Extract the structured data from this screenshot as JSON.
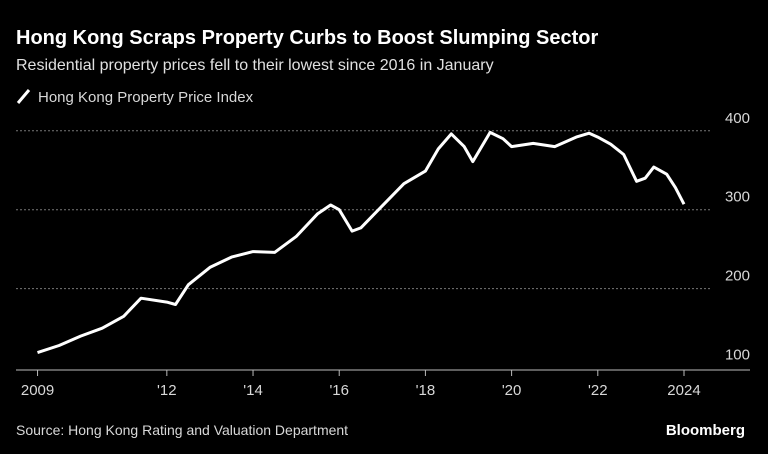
{
  "chart_data": {
    "type": "line",
    "title": "Hong Kong Scraps Property Curbs to Boost Slumping Sector",
    "subtitle": "Residential property prices fell to their lowest since 2016 in January",
    "source": "Source: Hong Kong Rating and Valuation Department",
    "brand": "Bloomberg",
    "x": [
      2009.0,
      2009.5,
      2010.0,
      2010.5,
      2011.0,
      2011.4,
      2012.0,
      2012.2,
      2012.5,
      2013.0,
      2013.5,
      2014.0,
      2014.5,
      2015.0,
      2015.5,
      2015.8,
      2016.0,
      2016.3,
      2016.5,
      2017.0,
      2017.5,
      2018.0,
      2018.3,
      2018.6,
      2018.9,
      2019.1,
      2019.5,
      2019.8,
      2020.0,
      2020.5,
      2021.0,
      2021.5,
      2021.8,
      2022.0,
      2022.3,
      2022.6,
      2022.9,
      2023.1,
      2023.3,
      2023.6,
      2023.8,
      2024.0
    ],
    "series": [
      {
        "name": "Hong Kong Property Price Index",
        "color": "#ffffff",
        "values": [
          119,
          128,
          140,
          150,
          165,
          188,
          183,
          180,
          205,
          227,
          240,
          247,
          246,
          266,
          295,
          306,
          300,
          273,
          277,
          305,
          333,
          349,
          377,
          396,
          380,
          361,
          398,
          390,
          380,
          384,
          380,
          392,
          397,
          392,
          383,
          370,
          336,
          340,
          354,
          345,
          328,
          307
        ]
      }
    ],
    "xlim": [
      2008.5,
      2024.65
    ],
    "xticks": [
      2009,
      {
        "value": 2012,
        "label": "'12"
      },
      {
        "value": 2014,
        "label": "'14"
      },
      {
        "value": 2016,
        "label": "'16"
      },
      {
        "value": 2018,
        "label": "'18"
      },
      {
        "value": 2020,
        "label": "'20"
      },
      {
        "value": 2022,
        "label": "'22"
      },
      2024
    ],
    "ylim": [
      97,
      420
    ],
    "yticks": [
      100,
      200,
      300,
      400
    ],
    "grid": true
  }
}
